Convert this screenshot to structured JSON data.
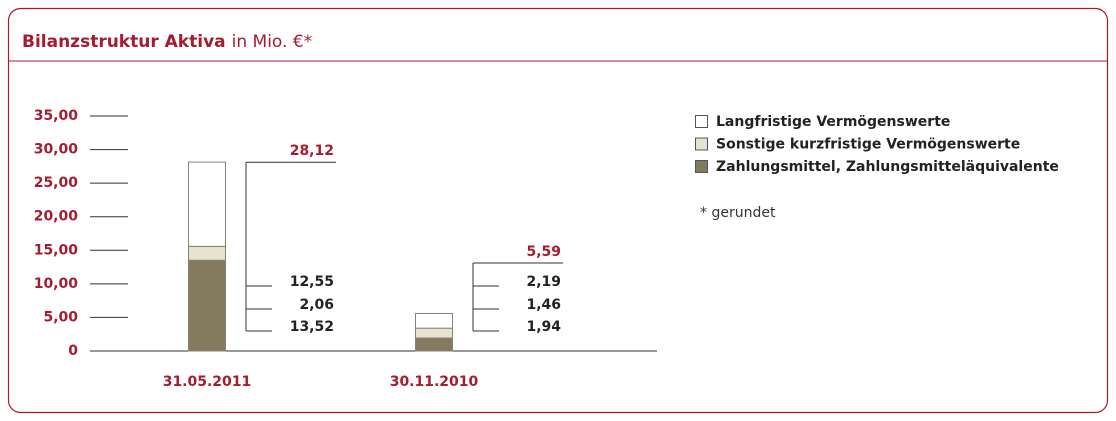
{
  "chart_data": {
    "type": "stacked_bar",
    "title": "Bilanzstruktur Aktiva",
    "subtitle": "in Mio. €*",
    "note": "* gerundet",
    "categories": [
      "31.05.2011",
      "30.11.2010"
    ],
    "series": [
      {
        "name": "Langfristige Vermögenswerte",
        "color": "#ffffff",
        "values": [
          12.55,
          2.19
        ],
        "value_labels": [
          "12,55",
          "2,19"
        ]
      },
      {
        "name": "Sonstige kurzfristige Vermögenswerte",
        "color": "#e6e4d0",
        "values": [
          2.06,
          1.46
        ],
        "value_labels": [
          "2,06",
          "1,46"
        ]
      },
      {
        "name": "Zahlungsmittel, Zahlungsmitteläquivalente",
        "color": "#847a5e",
        "values": [
          13.52,
          1.94
        ],
        "value_labels": [
          "13,52",
          "1,94"
        ]
      }
    ],
    "totals": [
      28.12,
      5.59
    ],
    "total_labels": [
      "28,12",
      "5,59"
    ],
    "ylim": [
      0,
      35
    ],
    "yticks": [
      0,
      {
        "value": 5,
        "label": "5,00"
      },
      {
        "value": 10,
        "label": "10,00"
      },
      {
        "value": 15,
        "label": "15,00"
      },
      {
        "value": 20,
        "label": "20,00"
      },
      {
        "value": 25,
        "label": "25,00"
      },
      {
        "value": 30,
        "label": "30,00"
      },
      {
        "value": 35,
        "label": "35,00"
      }
    ],
    "accent_color": "#a51c30"
  }
}
